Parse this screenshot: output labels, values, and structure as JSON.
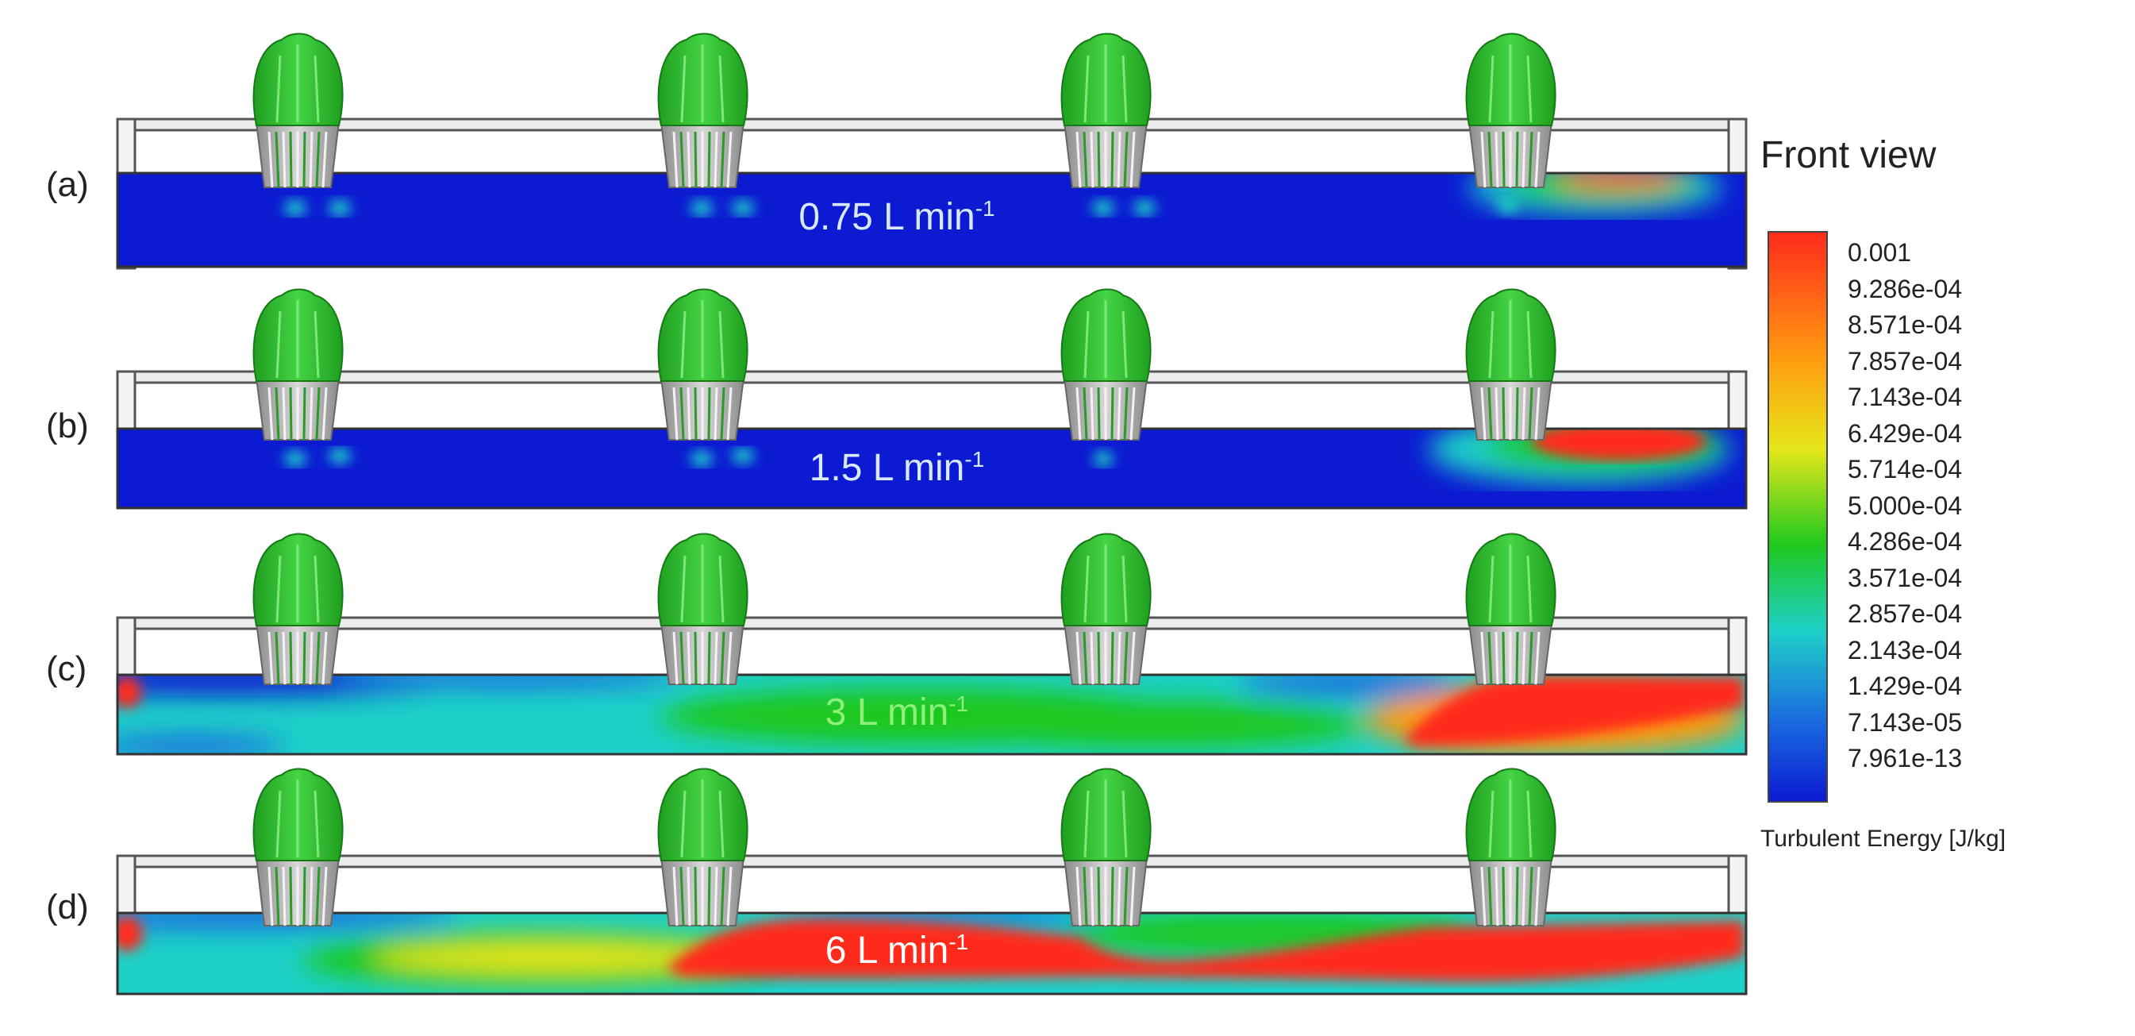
{
  "legend": {
    "title": "Front view",
    "units": "Turbulent Energy [J/kg]",
    "ticks": [
      "0.001",
      "9.286e-04",
      "8.571e-04",
      "7.857e-04",
      "7.143e-04",
      "6.429e-04",
      "5.714e-04",
      "5.000e-04",
      "4.286e-04",
      "3.571e-04",
      "2.857e-04",
      "2.143e-04",
      "1.429e-04",
      "7.143e-05",
      "7.961e-13"
    ],
    "colors": {
      "max": "#ff2a1c",
      "high": "#ff9a10",
      "upper_mid": "#e6e61a",
      "mid": "#1ec81e",
      "lower_mid": "#1ed0c8",
      "low": "#1a6ae0",
      "min": "#0c1ad2"
    }
  },
  "panels": [
    {
      "label": "(a)",
      "flow": "0.75 L min",
      "exponent": "-1"
    },
    {
      "label": "(b)",
      "flow": "1.5 L min",
      "exponent": "-1"
    },
    {
      "label": "(c)",
      "flow": "3 L min",
      "exponent": "-1"
    },
    {
      "label": "(d)",
      "flow": "6 L min",
      "exponent": "-1"
    }
  ]
}
